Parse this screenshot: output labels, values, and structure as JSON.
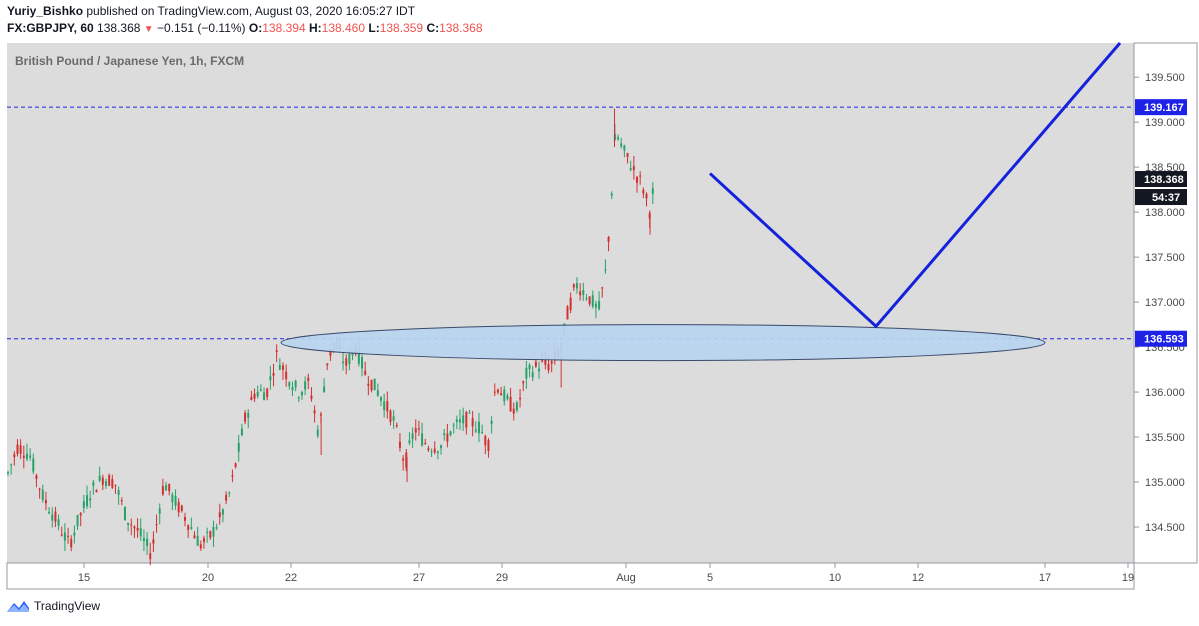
{
  "header": {
    "author": "Yuriy_Bishko",
    "published_text": "published on TradingView.com, August 03, 2020 16:05:27 IDT",
    "symbol": "FX:GBPJPY, 60",
    "last": "138.368",
    "change_arrow": "▼",
    "change": "−0.151 (−0.11%)",
    "o_label": "O:",
    "o_value": "138.394",
    "h_label": "H:",
    "h_value": "138.460",
    "l_label": "L:",
    "l_value": "138.359",
    "c_label": "C:",
    "c_value": "138.368"
  },
  "footer": {
    "brand": "TradingView",
    "logo_icon": "tradingview-logo-icon"
  },
  "chart_data": {
    "type": "candlestick",
    "title": "British Pound / Japanese Yen, 1h, FXCM",
    "ylim": [
      134.1,
      139.88
    ],
    "y_ticks": [
      "134.500",
      "135.000",
      "135.500",
      "136.000",
      "136.500",
      "137.000",
      "137.500",
      "138.000",
      "138.500",
      "139.000",
      "139.500"
    ],
    "x_ticks": [
      "15",
      "20",
      "22",
      "27",
      "29",
      "Aug",
      "5",
      "10",
      "12",
      "17",
      "19"
    ],
    "price_labels": [
      {
        "value": "139.167",
        "color": "#1e22e6"
      },
      {
        "value": "138.368",
        "color": "#131722"
      },
      {
        "value": "54:37",
        "color": "#131722"
      },
      {
        "value": "136.593",
        "color": "#1e22e6"
      }
    ],
    "horizontal_lines": [
      139.167,
      136.593
    ],
    "colors": {
      "up": "#26a269",
      "down": "#d32f2f",
      "background": "#dcdcdc",
      "projection": "#1522dd",
      "zone": "#b7d4ef"
    },
    "price_path": [
      [
        0,
        135.1
      ],
      [
        10,
        135.4
      ],
      [
        22,
        135.3
      ],
      [
        35,
        134.85
      ],
      [
        50,
        134.55
      ],
      [
        62,
        134.3
      ],
      [
        72,
        134.6
      ],
      [
        84,
        134.9
      ],
      [
        96,
        135.05
      ],
      [
        108,
        135.0
      ],
      [
        120,
        134.6
      ],
      [
        132,
        134.45
      ],
      [
        145,
        134.2
      ],
      [
        158,
        135.0
      ],
      [
        168,
        134.8
      ],
      [
        180,
        134.6
      ],
      [
        195,
        134.3
      ],
      [
        205,
        134.4
      ],
      [
        215,
        134.6
      ],
      [
        225,
        134.9
      ],
      [
        240,
        135.7
      ],
      [
        250,
        136.0
      ],
      [
        262,
        136.0
      ],
      [
        272,
        136.4
      ],
      [
        282,
        136.2
      ],
      [
        294,
        136.0
      ],
      [
        305,
        136.1
      ],
      [
        315,
        135.5
      ],
      [
        322,
        136.3
      ],
      [
        330,
        136.55
      ],
      [
        342,
        136.3
      ],
      [
        352,
        136.5
      ],
      [
        362,
        136.2
      ],
      [
        375,
        136.0
      ],
      [
        390,
        135.7
      ],
      [
        402,
        135.2
      ],
      [
        412,
        135.6
      ],
      [
        425,
        135.4
      ],
      [
        438,
        135.4
      ],
      [
        450,
        135.6
      ],
      [
        465,
        135.7
      ],
      [
        478,
        135.6
      ],
      [
        486,
        135.4
      ],
      [
        494,
        136.1
      ],
      [
        505,
        135.9
      ],
      [
        515,
        135.8
      ],
      [
        525,
        136.2
      ],
      [
        538,
        136.3
      ],
      [
        550,
        136.3
      ],
      [
        560,
        136.5
      ],
      [
        567,
        136.9
      ],
      [
        575,
        137.2
      ],
      [
        585,
        137.1
      ],
      [
        598,
        136.9
      ],
      [
        606,
        137.4
      ],
      [
        611,
        138.2
      ],
      [
        615,
        138.9
      ],
      [
        622,
        138.7
      ],
      [
        632,
        138.5
      ],
      [
        642,
        138.3
      ],
      [
        650,
        138.0
      ],
      [
        655,
        138.37
      ]
    ],
    "projection_path": [
      [
        2020.0803,
        138.43
      ],
      [
        2020.0811,
        136.73
      ],
      [
        2020.0818,
        139.88
      ]
    ],
    "zone_center": 136.55
  }
}
